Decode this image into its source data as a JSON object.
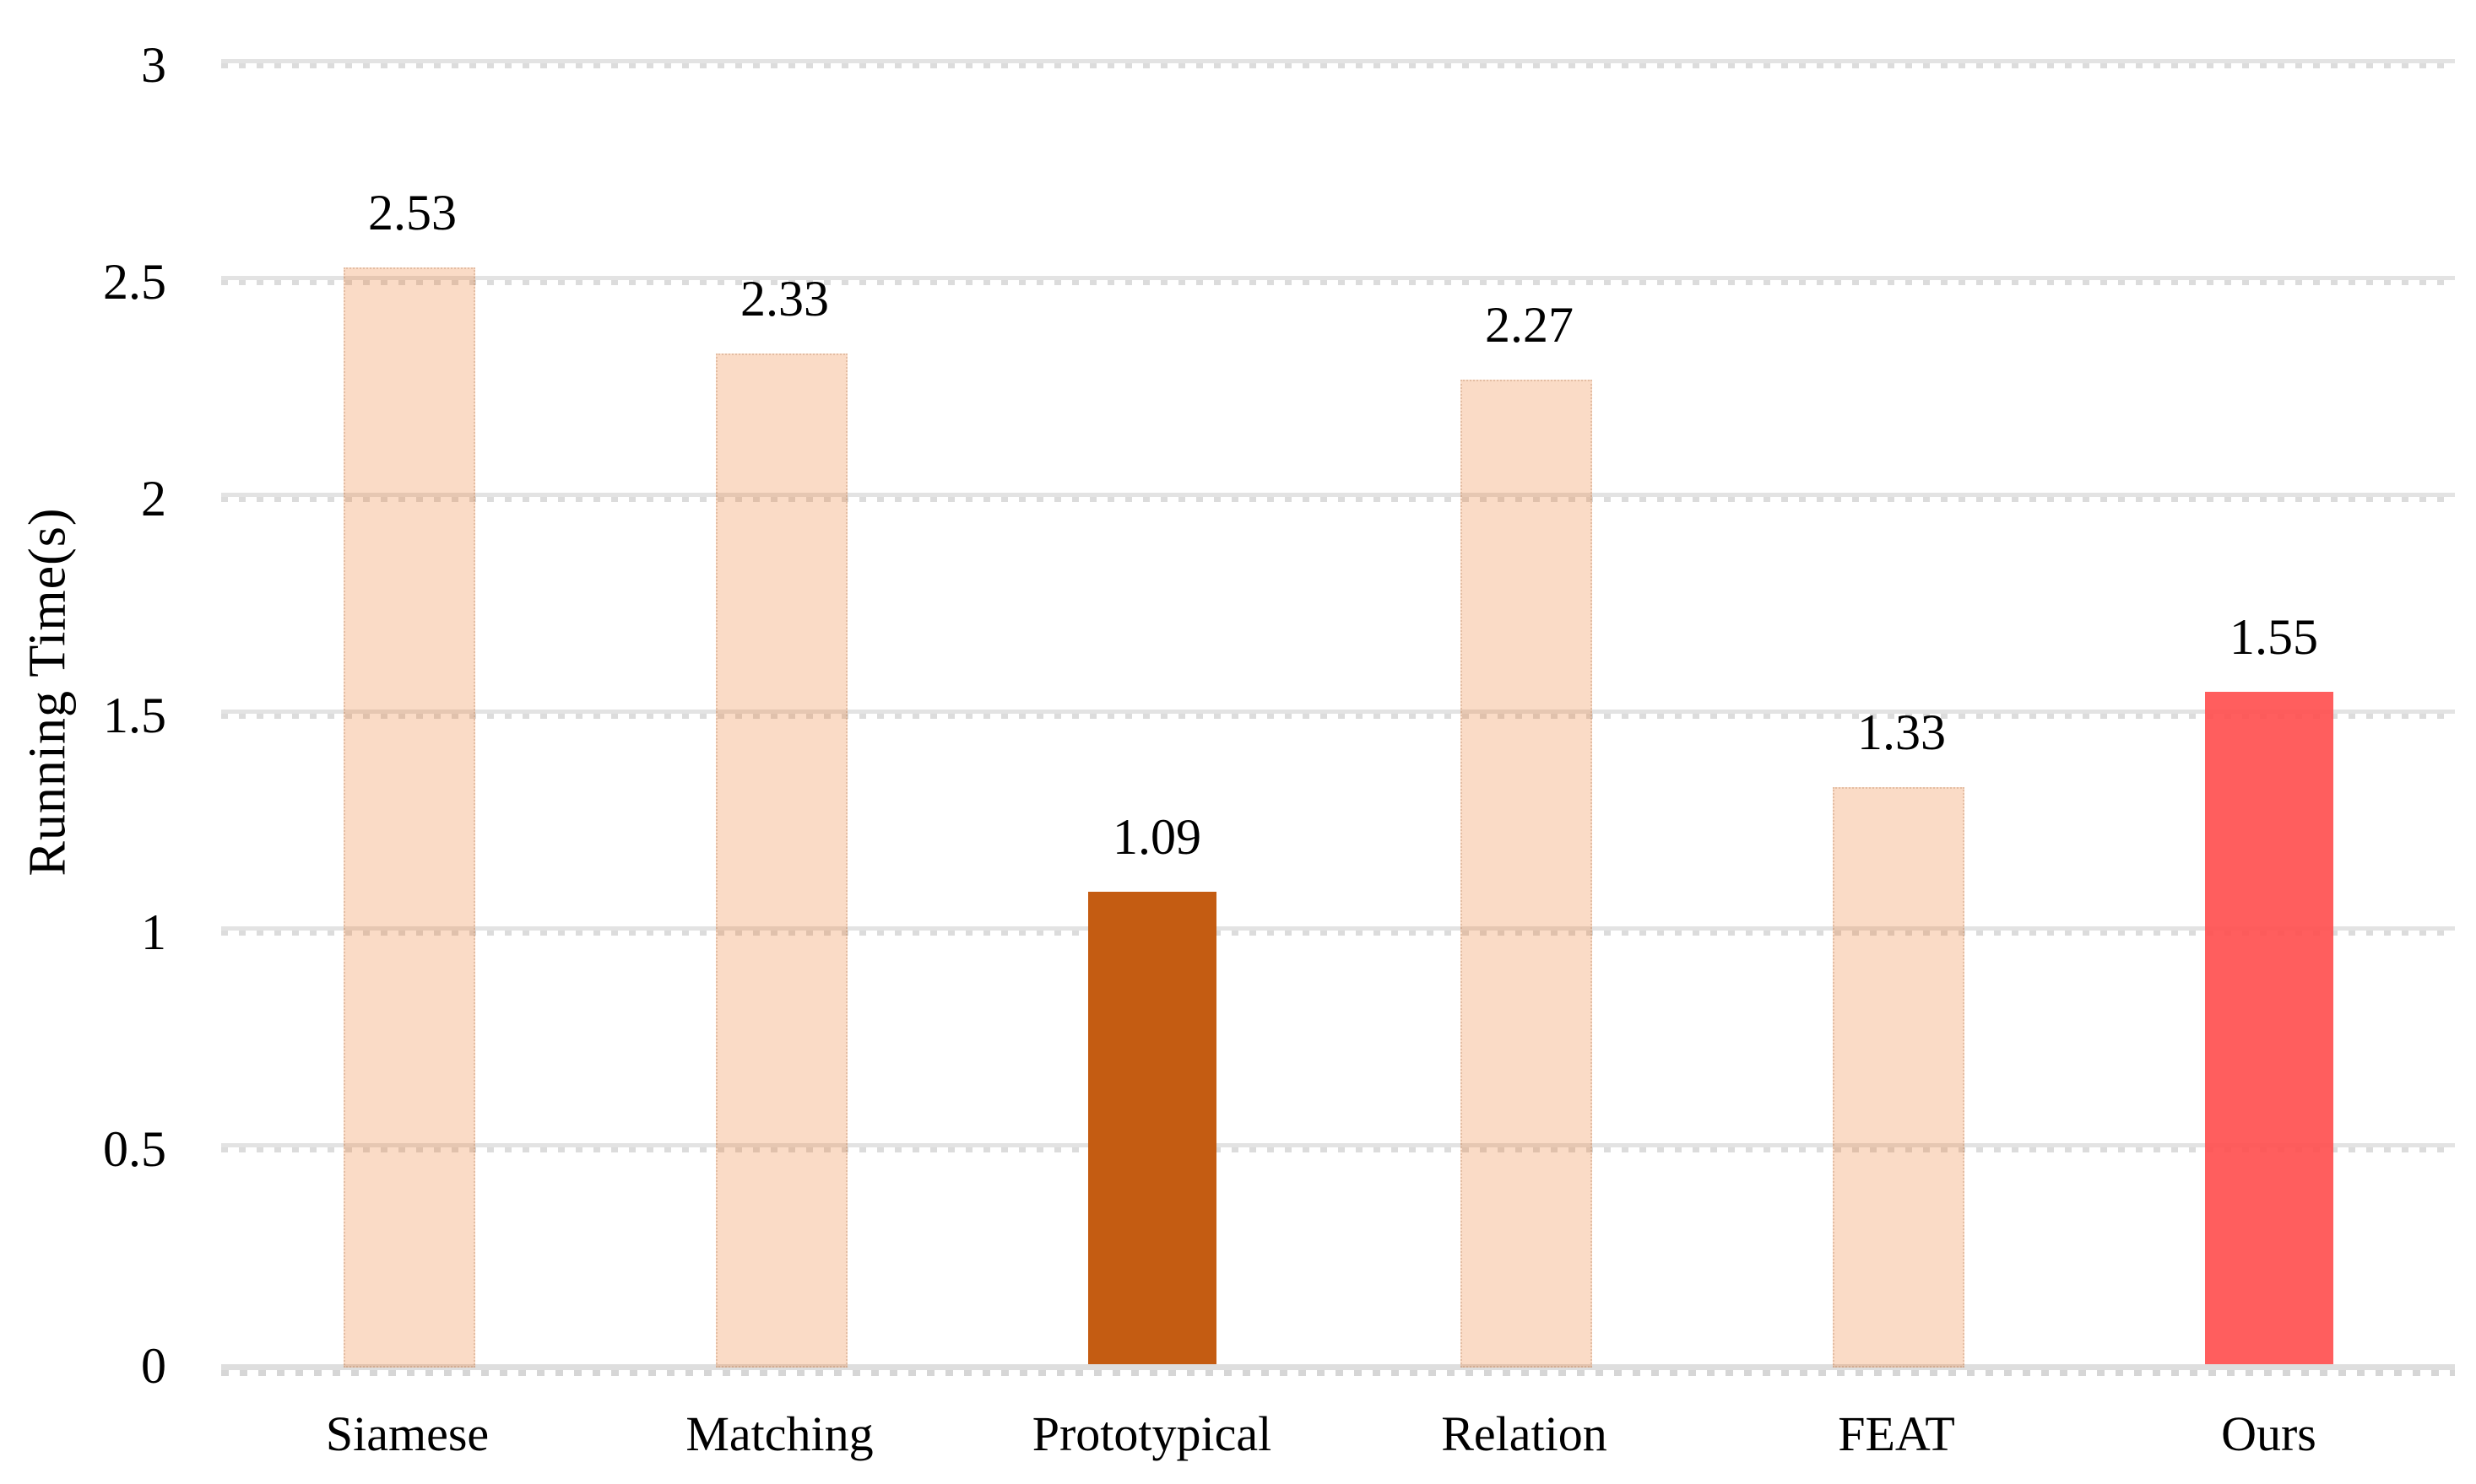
{
  "chart_data": {
    "type": "bar",
    "title": "",
    "xlabel": "",
    "ylabel": "Running Time(s)",
    "categories": [
      "Siamese",
      "Matching",
      "Prototypical",
      "Relation",
      "FEAT",
      "Ours"
    ],
    "values": [
      2.53,
      2.33,
      1.09,
      2.27,
      1.33,
      1.55
    ],
    "value_labels": [
      "2.53",
      "2.33",
      "1.09",
      "2.27",
      "1.33",
      "1.55"
    ],
    "series": [
      {
        "name": "Running Time",
        "values": [
          2.53,
          2.33,
          1.09,
          2.27,
          1.33,
          1.55
        ]
      }
    ],
    "ylim": [
      0,
      3
    ],
    "yticks": [
      "3",
      "2.5",
      "2",
      "1.5",
      "1",
      "0.5",
      "0"
    ],
    "grid": "horizontal light-gray dotted gridlines at every 0.5",
    "legend_position": "none",
    "bar_color_roles": [
      "baseline",
      "baseline",
      "prototypical",
      "baseline",
      "baseline",
      "ours"
    ],
    "colors": {
      "baseline_bar": "rgba(237,125,49,0.28)",
      "prototypical_bar": "#C45C12",
      "ours_bar": "rgba(255,76,77,0.90)",
      "gridline": "#E0E0E0",
      "axis_line": "#D9D9D9",
      "text": "#000000"
    }
  }
}
